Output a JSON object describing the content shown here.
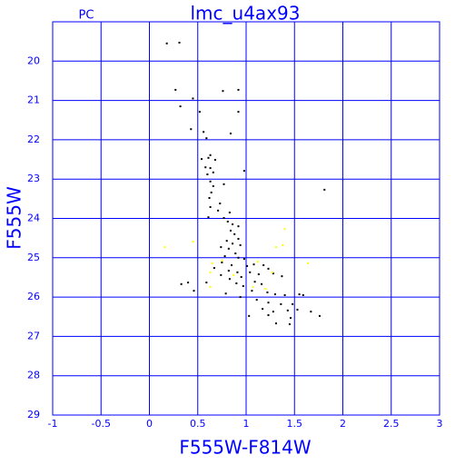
{
  "chart_data": {
    "type": "scatter",
    "title": "lmc_u4ax93",
    "subtitle": "PC",
    "x_label": "F555W-F814W",
    "y_label": "F555W",
    "xlim": [
      -1,
      3
    ],
    "ylim": [
      19,
      29
    ],
    "y_inverted": true,
    "grid": true,
    "grid_color": "#0000ff",
    "xticks": [
      -1,
      -0.5,
      0,
      0.5,
      1,
      1.5,
      2,
      2.5,
      3
    ],
    "yticks": [
      20,
      21,
      22,
      23,
      24,
      25,
      26,
      27,
      28,
      29
    ],
    "series": [
      {
        "color": "#000000",
        "x": [
          0.18,
          0.31,
          0.27,
          0.76,
          0.92,
          0.32,
          0.45,
          0.52,
          0.92,
          0.43,
          0.56,
          0.84,
          0.59,
          0.54,
          0.61,
          0.63,
          0.68,
          0.58,
          0.63,
          0.6,
          0.66,
          0.98,
          0.63,
          0.66,
          0.77,
          0.64,
          0.62,
          1.81,
          0.73,
          0.63,
          0.71,
          0.83,
          0.61,
          0.77,
          0.81,
          0.86,
          0.92,
          0.84,
          0.88,
          0.92,
          0.8,
          0.86,
          0.94,
          0.74,
          0.82,
          0.89,
          0.78,
          0.92,
          0.98,
          0.75,
          0.85,
          1.01,
          1.08,
          1.18,
          0.67,
          0.82,
          0.91,
          1.23,
          1.04,
          1.13,
          0.74,
          0.95,
          1.28,
          1.37,
          0.83,
          1.09,
          1.16,
          0.59,
          0.9,
          0.33,
          0.4,
          0.46,
          0.97,
          1.06,
          1.22,
          0.79,
          0.94,
          1.3,
          1.4,
          1.55,
          1.59,
          1.11,
          1.23,
          1.36,
          1.48,
          1.17,
          1.28,
          1.43,
          1.53,
          1.67,
          1.03,
          1.23,
          1.46,
          1.76,
          1.31,
          1.45
        ],
        "y": [
          19.55,
          19.53,
          20.73,
          20.76,
          20.73,
          21.15,
          20.95,
          21.29,
          21.29,
          21.73,
          21.8,
          21.84,
          21.96,
          22.49,
          22.46,
          22.39,
          22.51,
          22.7,
          22.72,
          22.88,
          22.83,
          22.79,
          23.06,
          23.18,
          23.13,
          23.34,
          23.48,
          23.27,
          23.62,
          23.71,
          23.8,
          23.85,
          23.97,
          23.99,
          24.08,
          24.15,
          24.2,
          24.31,
          24.4,
          24.52,
          24.57,
          24.64,
          24.68,
          24.73,
          24.77,
          24.89,
          24.96,
          25.0,
          25.03,
          25.12,
          25.19,
          25.21,
          25.17,
          25.19,
          25.26,
          25.33,
          25.37,
          25.28,
          25.37,
          25.42,
          25.44,
          25.49,
          25.4,
          25.47,
          25.54,
          25.61,
          25.67,
          25.63,
          25.65,
          25.67,
          25.63,
          25.84,
          25.72,
          25.84,
          25.88,
          25.91,
          26.0,
          25.93,
          25.95,
          25.93,
          25.95,
          26.07,
          26.14,
          26.18,
          26.18,
          26.3,
          26.37,
          26.34,
          26.32,
          26.37,
          26.48,
          26.46,
          26.53,
          26.48,
          26.67,
          26.69
        ]
      },
      {
        "color": "#ffff00",
        "x": [
          0.16,
          0.45,
          1.4,
          1.31,
          1.38,
          1.64,
          0.65,
          0.63,
          0.87,
          1.27,
          1.07,
          0.63,
          0.75,
          1.12,
          1.2
        ],
        "y": [
          24.73,
          24.59,
          24.27,
          24.73,
          24.68,
          25.14,
          25.14,
          25.37,
          25.44,
          25.37,
          25.74,
          25.74,
          25.07,
          25.1,
          25.79
        ]
      }
    ]
  }
}
